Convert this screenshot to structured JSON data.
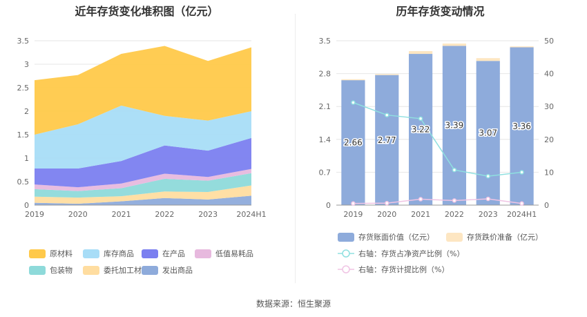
{
  "left_title": "近年存货变化堆积图（亿元）",
  "right_title": "历年存货变动情况",
  "source": "数据来源：恒生聚源",
  "colors": {
    "原材料": "#FFC94A",
    "库存商品": "#A8DDF7",
    "在产品": "#7B7FF0",
    "低值易耗品": "#E7B9DE",
    "包装物": "#8EDADA",
    "委托加工材料": "#FFDDA0",
    "发出商品": "#8EABDB",
    "bar_main": "#8EABDB",
    "bar_reserve": "#FDE6C2",
    "line_ratio": "#8FE0E0",
    "line_provision": "#F0C4E4"
  },
  "chart_data": [
    {
      "type": "area",
      "stacked": true,
      "categories": [
        "2019",
        "2020",
        "2021",
        "2022",
        "2023",
        "2024H1"
      ],
      "ylim": [
        0,
        3.5
      ],
      "yticks": [
        "0",
        "0.5",
        "1",
        "1.5",
        "2",
        "2.5",
        "3",
        "3.5"
      ],
      "grid": true,
      "legend_position": "bottom",
      "series": [
        {
          "name": "发出商品",
          "values": [
            0.05,
            0.03,
            0.08,
            0.15,
            0.12,
            0.2
          ]
        },
        {
          "name": "委托加工材料",
          "values": [
            0.13,
            0.13,
            0.11,
            0.14,
            0.16,
            0.22
          ]
        },
        {
          "name": "包装物",
          "values": [
            0.16,
            0.14,
            0.17,
            0.27,
            0.24,
            0.26
          ]
        },
        {
          "name": "低值易耗品",
          "values": [
            0.1,
            0.08,
            0.1,
            0.11,
            0.08,
            0.09
          ]
        },
        {
          "name": "在产品",
          "values": [
            0.34,
            0.4,
            0.48,
            0.6,
            0.56,
            0.66
          ]
        },
        {
          "name": "库存商品",
          "values": [
            0.72,
            0.94,
            1.18,
            0.63,
            0.64,
            0.57
          ]
        },
        {
          "name": "原材料",
          "values": [
            1.16,
            1.05,
            1.1,
            1.49,
            1.27,
            1.36
          ]
        }
      ],
      "legend": [
        "原材料",
        "库存商品",
        "在产品",
        "低值易耗品",
        "包装物",
        "委托加工材料",
        "发出商品"
      ]
    },
    {
      "type": "bar",
      "stacked": true,
      "categories": [
        "2019",
        "2020",
        "2021",
        "2022",
        "2023",
        "2024H1"
      ],
      "ylim": [
        0,
        3.5
      ],
      "yticks": [
        "0",
        "0.7",
        "1.4",
        "2.1",
        "2.8",
        "3.5"
      ],
      "y2lim": [
        0,
        50
      ],
      "y2ticks": [
        "0",
        "10",
        "20",
        "30",
        "40",
        "50"
      ],
      "grid": true,
      "legend_position": "bottom",
      "series": [
        {
          "name": "存货账面价值（亿元）",
          "values": [
            2.66,
            2.77,
            3.22,
            3.39,
            3.07,
            3.36
          ],
          "labels": [
            "2.66",
            "2.77",
            "3.22",
            "3.39",
            "3.07",
            "3.36"
          ]
        },
        {
          "name": "存货跌价准备（亿元）",
          "values": [
            0.02,
            0.02,
            0.06,
            0.05,
            0.06,
            0.02
          ]
        },
        {
          "name": "右轴：存货占净资产比例（%）",
          "axis": "right",
          "type": "line",
          "values": [
            31.2,
            27.4,
            26.3,
            10.7,
            8.8,
            10.0
          ]
        },
        {
          "name": "右轴：存货计提比例（%）",
          "axis": "right",
          "type": "line",
          "values": [
            0.5,
            0.6,
            1.8,
            1.4,
            1.9,
            0.5
          ]
        }
      ]
    }
  ]
}
